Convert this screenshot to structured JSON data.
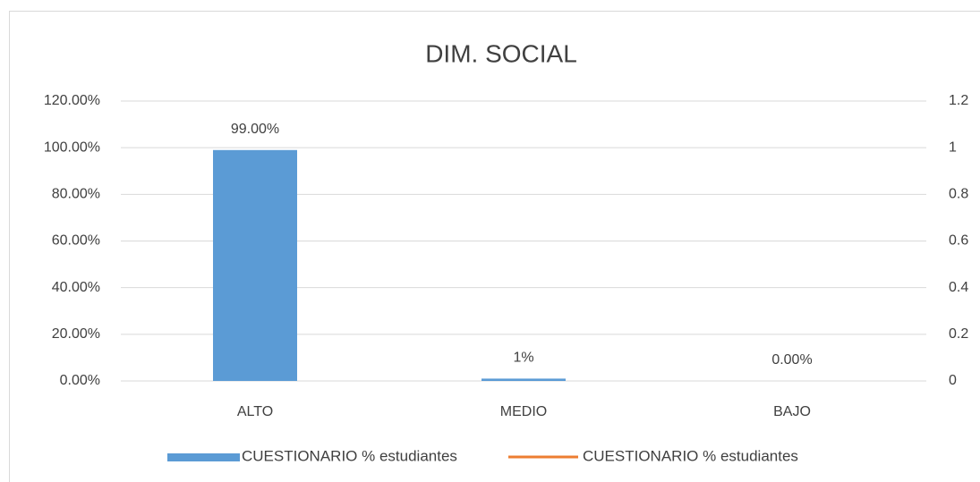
{
  "chart_data": {
    "type": "bar",
    "title": "DIM. SOCIAL",
    "categories": [
      "ALTO",
      "MEDIO",
      "BAJO"
    ],
    "series": [
      {
        "name": "CUESTIONARIO % estudiantes",
        "color": "#5b9bd5",
        "values": [
          99,
          1,
          0
        ],
        "value_labels": [
          "99.00%",
          "1%",
          "0.00%"
        ]
      },
      {
        "name": "CUESTIONARIO % estudiantes",
        "color": "#ed7d31",
        "type": "line",
        "axis": "y2",
        "values": [
          null,
          null,
          null
        ]
      }
    ],
    "ylim": [
      0,
      120
    ],
    "yticks": [
      {
        "value": 0,
        "label": "0.00%"
      },
      {
        "value": 20,
        "label": "20.00%"
      },
      {
        "value": 40,
        "label": "40.00%"
      },
      {
        "value": 60,
        "label": "60.00%"
      },
      {
        "value": 80,
        "label": "80.00%"
      },
      {
        "value": 100,
        "label": "100.00%"
      },
      {
        "value": 120,
        "label": "120.00%"
      }
    ],
    "y2lim": [
      0,
      1.2
    ],
    "y2ticks": [
      0,
      0.2,
      0.4,
      0.6,
      0.8,
      1,
      1.2
    ],
    "grid": true,
    "legend": "bottom"
  }
}
